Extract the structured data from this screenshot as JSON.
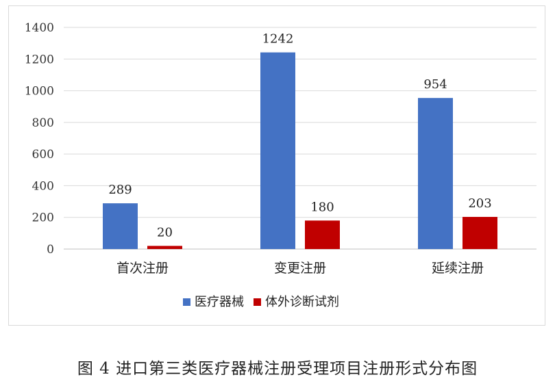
{
  "caption": "图 4  进口第三类医疗器械注册受理项目注册形式分布图",
  "colors": {
    "series_0": "#4472C4",
    "series_1": "#C00000",
    "grid": "#d9d9d9",
    "axis": "#bfbfbf"
  },
  "chart_data": {
    "type": "bar",
    "title": "",
    "xlabel": "",
    "ylabel": "",
    "categories": [
      "首次注册",
      "变更注册",
      "延续注册"
    ],
    "series": [
      {
        "name": "医疗器械",
        "values": [
          289,
          1242,
          954
        ]
      },
      {
        "name": "体外诊断试剂",
        "values": [
          20,
          180,
          203
        ]
      }
    ],
    "ylim": [
      0,
      1400
    ],
    "yticks": [
      0,
      200,
      400,
      600,
      800,
      1000,
      1200,
      1400
    ],
    "grid": true,
    "legend": "bottom",
    "data_labels": true
  }
}
